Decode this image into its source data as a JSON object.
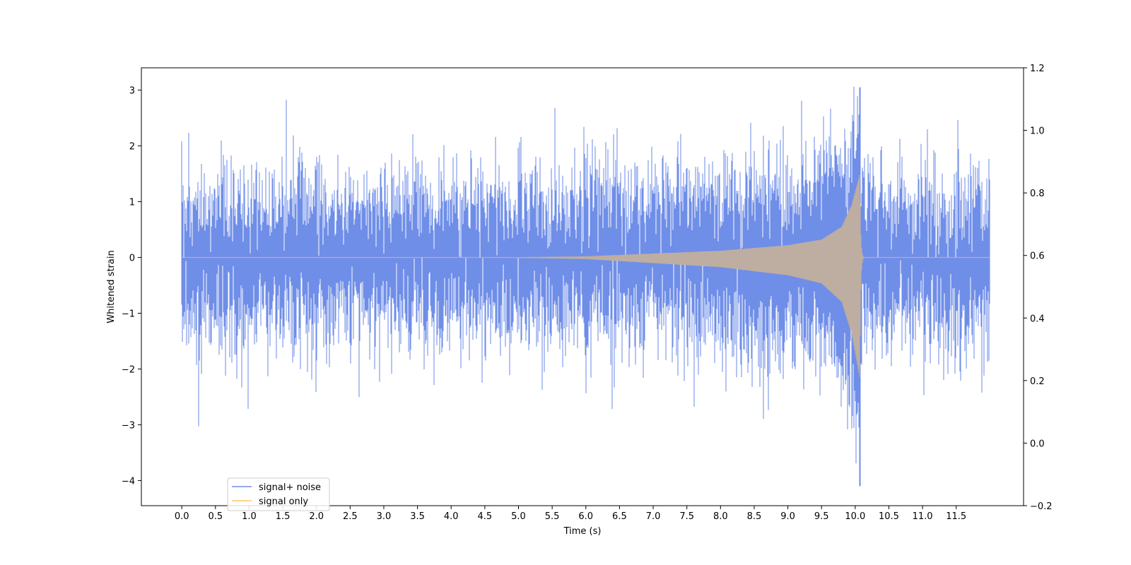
{
  "chart_data": {
    "type": "line",
    "title": "",
    "xlabel": "Time (s)",
    "ylabel": "Whitened strain",
    "xlim": [
      -0.6,
      12.5
    ],
    "ylim": [
      -4.45,
      3.4
    ],
    "y2lim": [
      -0.2,
      1.2
    ],
    "x_ticks": [
      0.0,
      0.5,
      1.0,
      1.5,
      2.0,
      2.5,
      3.0,
      3.5,
      4.0,
      4.5,
      5.0,
      5.5,
      6.0,
      6.5,
      7.0,
      7.5,
      8.0,
      8.5,
      9.0,
      9.5,
      10.0,
      10.5,
      11.0,
      11.5
    ],
    "x_tick_labels": [
      "0.0",
      "0.5",
      "1.0",
      "1.5",
      "2.0",
      "2.5",
      "3.0",
      "3.5",
      "4.0",
      "4.5",
      "5.0",
      "5.5",
      "6.0",
      "6.5",
      "7.0",
      "7.5",
      "8.0",
      "8.5",
      "9.0",
      "9.5",
      "10.0",
      "10.5",
      "11.0",
      "11.5"
    ],
    "y_ticks": [
      3,
      2,
      1,
      0,
      -1,
      -2,
      -3,
      -4
    ],
    "y_tick_labels": [
      "3",
      "2",
      "1",
      "0",
      "−1",
      "−2",
      "−3",
      "−4"
    ],
    "y2_ticks": [
      1.2,
      1.0,
      0.8,
      0.6,
      0.4,
      0.2,
      0.0,
      -0.2
    ],
    "y2_tick_labels": [
      "1.2",
      "1.0",
      "0.8",
      "0.6",
      "0.4",
      "0.2",
      "0.0",
      "−0.2"
    ],
    "grid": false,
    "legend_position": "lower-left",
    "series": [
      {
        "name": "signal+ noise",
        "color": "#6f8ee8",
        "x_range": [
          0.0,
          12.0
        ],
        "sample_rate_hz": 2048,
        "noise_std": 0.75,
        "peak_time": 10.07,
        "min_value": -4.1,
        "max_value": 3.05
      },
      {
        "name": "signal only",
        "color": "#ffc766",
        "x_range": [
          0.0,
          12.0
        ],
        "merger_time": 10.07,
        "envelope": [
          {
            "t": 6.0,
            "amp": 0.02
          },
          {
            "t": 7.0,
            "amp": 0.07
          },
          {
            "t": 8.0,
            "amp": 0.12
          },
          {
            "t": 9.0,
            "amp": 0.22
          },
          {
            "t": 9.5,
            "amp": 0.32
          },
          {
            "t": 9.8,
            "amp": 0.55
          },
          {
            "t": 9.95,
            "amp": 0.95
          },
          {
            "t": 10.07,
            "amp": 1.5
          }
        ],
        "min_value": -2.3,
        "max_value": 1.5
      }
    ]
  }
}
